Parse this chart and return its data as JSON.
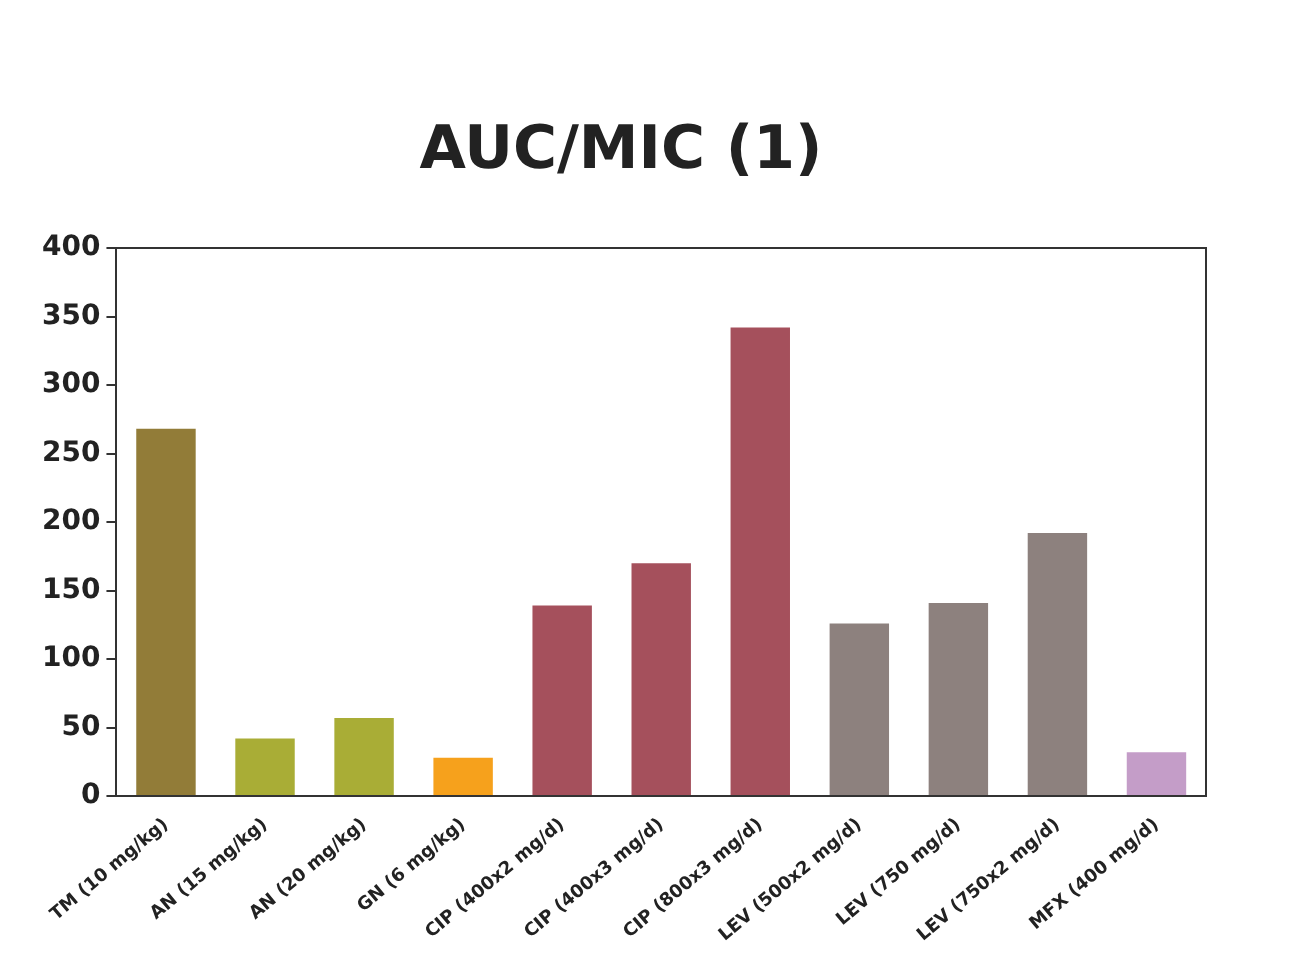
{
  "chart_data": {
    "type": "bar",
    "title": "AUC/MIC (1)",
    "categories": [
      "TM (10 mg/kg)",
      "AN (15 mg/kg)",
      "AN (20 mg/kg)",
      "GN (6 mg/kg)",
      "CIP (400x2 mg/d)",
      "CIP (400x3 mg/d)",
      "CIP (800x3 mg/d)",
      "LEV (500x2 mg/d)",
      "LEV (750 mg/d)",
      "LEV (750x2 mg/d)",
      "MFX (400 mg/d)"
    ],
    "values": [
      268,
      42,
      57,
      28,
      139,
      170,
      342,
      126,
      141,
      192,
      32
    ],
    "colors": [
      "#927c38",
      "#a9ad36",
      "#a9ad36",
      "#f6a11c",
      "#a5505c",
      "#a5505c",
      "#a5505c",
      "#8d817e",
      "#8d817e",
      "#8d817e",
      "#c49dc8"
    ],
    "ylim": [
      0,
      400
    ],
    "yticks": [
      0,
      50,
      100,
      150,
      200,
      250,
      300,
      350,
      400
    ],
    "grid": false,
    "legend": false
  }
}
